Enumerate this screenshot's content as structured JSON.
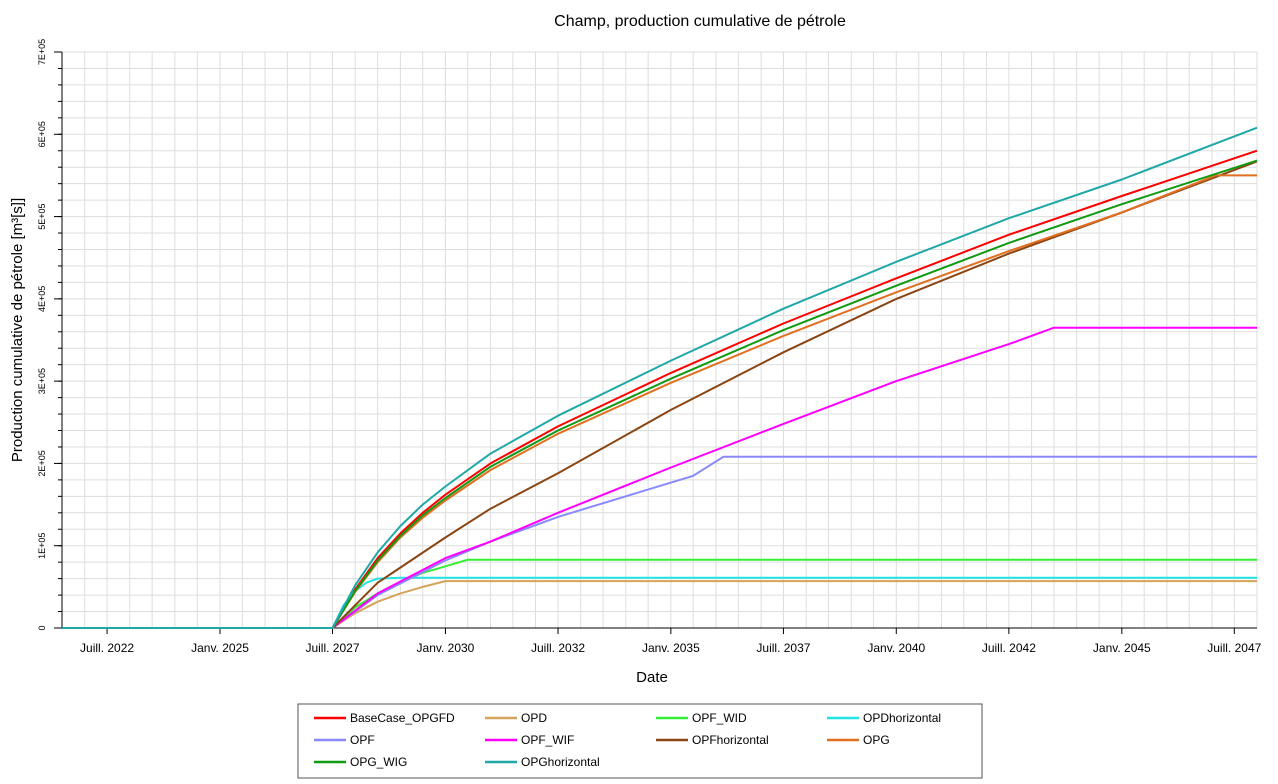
{
  "chart_data": {
    "type": "line",
    "title": "Champ, production cumulative de pétrole",
    "xlabel": "Date",
    "ylabel": "Production cumulative de pétrole [m³[s]]",
    "ylim": [
      0,
      700000
    ],
    "y_ticks": [
      {
        "value": 0,
        "label": "0"
      },
      {
        "value": 100000,
        "label": "1E+05"
      },
      {
        "value": 200000,
        "label": "2E+05"
      },
      {
        "value": 300000,
        "label": "3E+05"
      },
      {
        "value": 400000,
        "label": "4E+05"
      },
      {
        "value": 500000,
        "label": "5E+05"
      },
      {
        "value": 600000,
        "label": "6E+05"
      },
      {
        "value": 700000,
        "label": "7E+05"
      }
    ],
    "x_ticks": [
      {
        "date": "2022-07-01",
        "label": "Juill. 2022"
      },
      {
        "date": "2025-01-01",
        "label": "Janv. 2025"
      },
      {
        "date": "2027-07-01",
        "label": "Juill. 2027"
      },
      {
        "date": "2030-01-01",
        "label": "Janv. 2030"
      },
      {
        "date": "2032-07-01",
        "label": "Juill. 2032"
      },
      {
        "date": "2035-01-01",
        "label": "Janv. 2035"
      },
      {
        "date": "2037-07-01",
        "label": "Juill. 2037"
      },
      {
        "date": "2040-01-01",
        "label": "Janv. 2040"
      },
      {
        "date": "2042-07-01",
        "label": "Juill. 2042"
      },
      {
        "date": "2045-01-01",
        "label": "Janv. 2045"
      },
      {
        "date": "2047-07-01",
        "label": "Juill. 2047"
      }
    ],
    "xlim": [
      "2021-07-01",
      "2048-01-01"
    ],
    "grid": true,
    "legend_position": "bottom",
    "series": [
      {
        "name": "BaseCase_OPGFD",
        "color": "#ff0000",
        "x": [
          "2021-07-01",
          "2027-07-01",
          "2028-01-01",
          "2028-07-01",
          "2029-01-01",
          "2029-07-01",
          "2030-01-01",
          "2031-01-01",
          "2032-07-01",
          "2035-01-01",
          "2037-07-01",
          "2040-01-01",
          "2042-07-01",
          "2045-01-01",
          "2048-01-01"
        ],
        "y": [
          0,
          0,
          47000,
          85000,
          115000,
          140000,
          162000,
          200000,
          245000,
          310000,
          370000,
          425000,
          478000,
          525000,
          580000
        ]
      },
      {
        "name": "OPD",
        "color": "#d4a45c",
        "x": [
          "2021-07-01",
          "2027-07-01",
          "2028-01-01",
          "2028-07-01",
          "2029-01-01",
          "2029-07-01",
          "2030-01-01",
          "2048-01-01"
        ],
        "y": [
          0,
          0,
          18000,
          32000,
          42000,
          50000,
          57000,
          57000
        ]
      },
      {
        "name": "OPF_WID",
        "color": "#33ee33",
        "x": [
          "2021-07-01",
          "2027-07-01",
          "2028-01-01",
          "2028-07-01",
          "2029-01-01",
          "2029-07-01",
          "2030-01-01",
          "2030-07-01",
          "2048-01-01"
        ],
        "y": [
          0,
          0,
          25000,
          42000,
          56000,
          67000,
          75000,
          83000,
          83000
        ]
      },
      {
        "name": "OPDhorizontal",
        "color": "#22e4e4",
        "x": [
          "2021-07-01",
          "2027-07-01",
          "2027-10-01",
          "2028-01-01",
          "2028-04-01",
          "2028-07-01",
          "2029-01-01",
          "2048-01-01"
        ],
        "y": [
          0,
          0,
          28000,
          45000,
          55000,
          60000,
          61000,
          61000
        ]
      },
      {
        "name": "OPF",
        "color": "#8888ff",
        "x": [
          "2021-07-01",
          "2027-07-01",
          "2028-07-01",
          "2030-01-01",
          "2031-01-01",
          "2032-07-01",
          "2034-01-01",
          "2035-07-01",
          "2036-03-01",
          "2048-01-01"
        ],
        "y": [
          0,
          0,
          40000,
          82000,
          105000,
          135000,
          160000,
          185000,
          208000,
          208000
        ]
      },
      {
        "name": "OPF_WIF",
        "color": "#ff00ff",
        "x": [
          "2021-07-01",
          "2027-07-01",
          "2028-07-01",
          "2030-01-01",
          "2031-01-01",
          "2032-07-01",
          "2035-01-01",
          "2037-07-01",
          "2040-01-01",
          "2042-07-01",
          "2043-07-01",
          "2048-01-01"
        ],
        "y": [
          0,
          0,
          42000,
          85000,
          105000,
          140000,
          195000,
          248000,
          300000,
          345000,
          365000,
          365000
        ]
      },
      {
        "name": "OPFhorizontal",
        "color": "#8b4513",
        "x": [
          "2021-07-01",
          "2027-07-01",
          "2028-07-01",
          "2030-01-01",
          "2031-01-01",
          "2032-07-01",
          "2035-01-01",
          "2037-07-01",
          "2040-01-01",
          "2042-07-01",
          "2045-01-01",
          "2048-01-01"
        ],
        "y": [
          0,
          0,
          55000,
          110000,
          145000,
          188000,
          265000,
          335000,
          400000,
          455000,
          505000,
          567000
        ]
      },
      {
        "name": "OPG",
        "color": "#e07020",
        "x": [
          "2021-07-01",
          "2027-07-01",
          "2028-01-01",
          "2028-07-01",
          "2029-01-01",
          "2029-07-01",
          "2030-01-01",
          "2031-01-01",
          "2032-07-01",
          "2035-01-01",
          "2037-07-01",
          "2040-01-01",
          "2042-07-01",
          "2045-01-01",
          "2047-02-01",
          "2048-01-01"
        ],
        "y": [
          0,
          0,
          44000,
          80000,
          110000,
          134000,
          155000,
          192000,
          236000,
          298000,
          355000,
          408000,
          458000,
          505000,
          550000,
          550000
        ]
      },
      {
        "name": "OPG_WIG",
        "color": "#119911",
        "x": [
          "2021-07-01",
          "2027-07-01",
          "2028-01-01",
          "2028-07-01",
          "2029-01-01",
          "2029-07-01",
          "2030-01-01",
          "2031-01-01",
          "2032-07-01",
          "2035-01-01",
          "2037-07-01",
          "2040-01-01",
          "2042-07-01",
          "2045-01-01",
          "2048-01-01"
        ],
        "y": [
          0,
          0,
          45000,
          82000,
          112000,
          137000,
          158000,
          196000,
          240000,
          303000,
          362000,
          416000,
          468000,
          515000,
          568000
        ]
      },
      {
        "name": "OPGhorizontal",
        "color": "#20a8a8",
        "x": [
          "2021-07-01",
          "2027-07-01",
          "2028-01-01",
          "2028-07-01",
          "2029-01-01",
          "2029-07-01",
          "2030-01-01",
          "2031-01-01",
          "2032-07-01",
          "2035-01-01",
          "2037-07-01",
          "2040-01-01",
          "2042-07-01",
          "2045-01-01",
          "2048-01-01"
        ],
        "y": [
          0,
          0,
          52000,
          92000,
          124000,
          150000,
          172000,
          212000,
          258000,
          325000,
          388000,
          445000,
          498000,
          545000,
          608000
        ]
      }
    ]
  }
}
